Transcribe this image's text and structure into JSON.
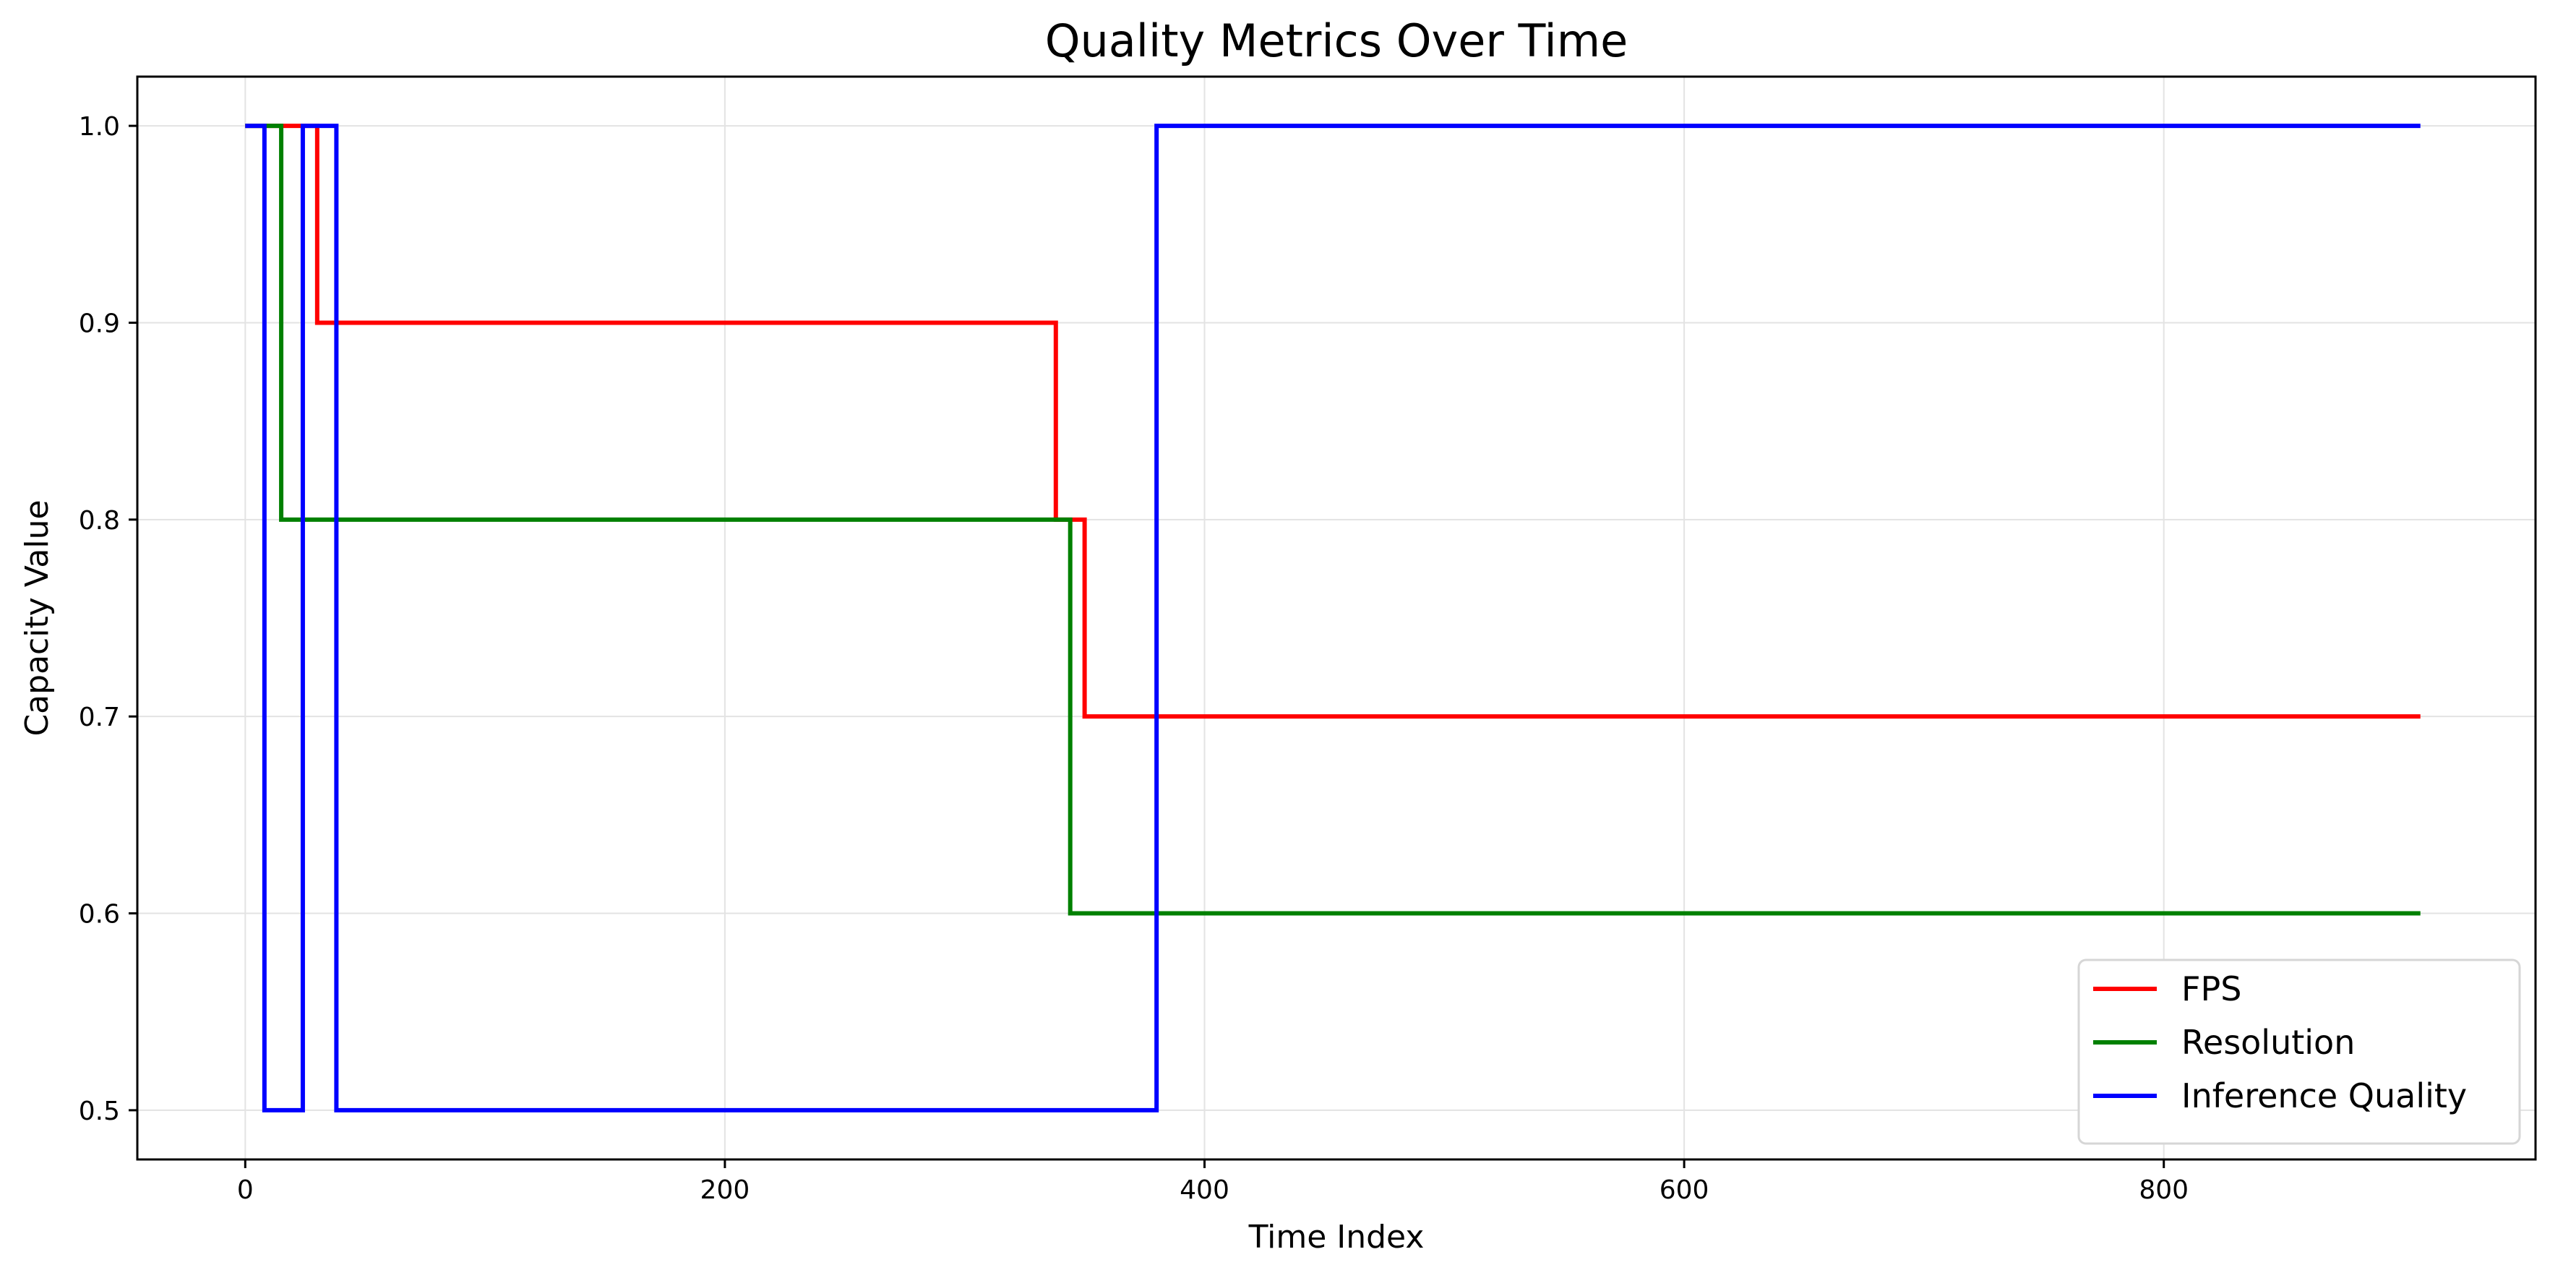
{
  "chart_data": {
    "type": "line",
    "step": "post",
    "title": "Quality Metrics Over Time",
    "xlabel": "Time Index",
    "ylabel": "Capacity Value",
    "xlim": [
      -45,
      955
    ],
    "ylim": [
      0.475,
      1.025
    ],
    "xticks": [
      0,
      200,
      400,
      600,
      800
    ],
    "xtick_labels": [
      "0",
      "200",
      "400",
      "600",
      "800"
    ],
    "yticks": [
      0.5,
      0.6,
      0.7,
      0.8,
      0.9,
      1.0
    ],
    "ytick_labels": [
      "0.5",
      "0.6",
      "0.7",
      "0.8",
      "0.9",
      "1.0"
    ],
    "grid": true,
    "legend_position": "lower-right",
    "series": [
      {
        "name": "FPS",
        "color": "#ff0000",
        "x": [
          0,
          25,
          30,
          338,
          350,
          907
        ],
        "y": [
          1.0,
          1.0,
          0.9,
          0.8,
          0.7,
          0.7
        ]
      },
      {
        "name": "Resolution",
        "color": "#008000",
        "x": [
          0,
          15,
          344,
          907
        ],
        "y": [
          1.0,
          0.8,
          0.6,
          0.6
        ]
      },
      {
        "name": "Inference Quality",
        "color": "#0000ff",
        "x": [
          0,
          8,
          24,
          38,
          380,
          907
        ],
        "y": [
          1.0,
          0.5,
          1.0,
          0.5,
          1.0,
          1.0
        ]
      }
    ]
  }
}
